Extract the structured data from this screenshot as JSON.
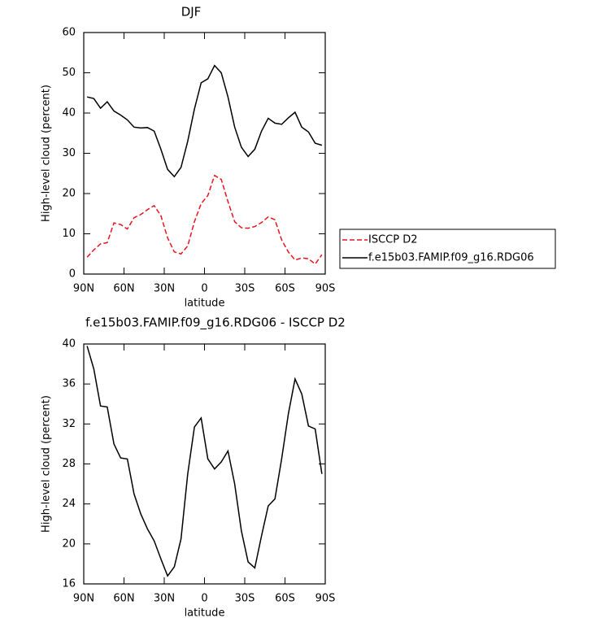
{
  "chart_data": [
    {
      "type": "line",
      "title": "DJF",
      "xlabel": "latitude",
      "ylabel": "High-level cloud (percent)",
      "x": [
        87.5,
        82.5,
        77.5,
        72.5,
        67.5,
        62.5,
        57.5,
        52.5,
        47.5,
        42.5,
        37.5,
        32.5,
        27.5,
        22.5,
        17.5,
        12.5,
        7.5,
        2.5,
        -2.5,
        -7.5,
        -12.5,
        -17.5,
        -22.5,
        -27.5,
        -32.5,
        -37.5,
        -42.5,
        -47.5,
        -52.5,
        -57.5,
        -62.5,
        -67.5,
        -72.5,
        -77.5,
        -82.5,
        -87.5
      ],
      "series": [
        {
          "name": "ISCCP D2",
          "color": "#e8141e",
          "linestyle": "dashed",
          "values": [
            4.2,
            6,
            7.5,
            7.8,
            12.7,
            12.3,
            11.2,
            14,
            14.8,
            16,
            17,
            14.5,
            9,
            5.5,
            5,
            7,
            13,
            17.5,
            19.5,
            24.5,
            23.5,
            18,
            13,
            11.5,
            11.4,
            11.8,
            12.8,
            14.2,
            13.5,
            8.5,
            5.5,
            3.5,
            4,
            3.8,
            2.5,
            4.8
          ]
        },
        {
          "name": "f.e15b03.FAMIP.f09_g16.RDG06",
          "color": "#000000",
          "linestyle": "solid",
          "values": [
            44,
            43.6,
            41.2,
            42.8,
            40.5,
            39.5,
            38.3,
            36.5,
            36.3,
            36.4,
            35.5,
            31,
            26,
            24.2,
            26.5,
            33,
            41,
            47.5,
            48.5,
            51.8,
            50,
            44,
            36.5,
            31.5,
            29.2,
            31,
            35.5,
            38.7,
            37.5,
            37.2,
            38.8,
            40.2,
            36.5,
            35.3,
            32.5,
            32
          ]
        }
      ],
      "xlim": [
        90,
        -90
      ],
      "xticks": [
        {
          "value": 90,
          "label": "90N"
        },
        {
          "value": 60,
          "label": "60N"
        },
        {
          "value": 30,
          "label": "30N"
        },
        0,
        {
          "value": -30,
          "label": "30S"
        },
        {
          "value": -60,
          "label": "60S"
        },
        {
          "value": -90,
          "label": "90S"
        }
      ],
      "ylim": [
        0,
        60
      ],
      "yticks": [
        0,
        10,
        20,
        30,
        40,
        50,
        60
      ],
      "legend": "right"
    },
    {
      "type": "line",
      "title": "f.e15b03.FAMIP.f09_g16.RDG06 - ISCCP D2",
      "xlabel": "latitude",
      "ylabel": "High-level cloud (percent)",
      "x": [
        87.5,
        82.5,
        77.5,
        72.5,
        67.5,
        62.5,
        57.5,
        52.5,
        47.5,
        42.5,
        37.5,
        32.5,
        27.5,
        22.5,
        17.5,
        12.5,
        7.5,
        2.5,
        -2.5,
        -7.5,
        -12.5,
        -17.5,
        -22.5,
        -27.5,
        -32.5,
        -37.5,
        -42.5,
        -47.5,
        -52.5,
        -57.5,
        -62.5,
        -67.5,
        -72.5,
        -77.5,
        -82.5,
        -87.5
      ],
      "series": [
        {
          "color": "#000000",
          "linestyle": "solid",
          "values": [
            39.8,
            37.5,
            33.8,
            33.7,
            30,
            28.6,
            28.5,
            25,
            23,
            21.5,
            20.3,
            18.5,
            16.8,
            17.7,
            20.5,
            27,
            31.7,
            32.6,
            28.5,
            27.5,
            28.2,
            29.3,
            26,
            21.3,
            18.2,
            17.6,
            20.8,
            23.8,
            24.5,
            28.5,
            33,
            36.5,
            35,
            31.8,
            31.5,
            27
          ]
        }
      ],
      "xlim": [
        90,
        -90
      ],
      "xticks": [
        {
          "value": 90,
          "label": "90N"
        },
        {
          "value": 60,
          "label": "60N"
        },
        {
          "value": 30,
          "label": "30N"
        },
        0,
        {
          "value": -30,
          "label": "30S"
        },
        {
          "value": -60,
          "label": "60S"
        },
        {
          "value": -90,
          "label": "90S"
        }
      ],
      "ylim": [
        16,
        40
      ],
      "yticks": [
        16,
        20,
        24,
        28,
        32,
        36,
        40
      ]
    }
  ]
}
